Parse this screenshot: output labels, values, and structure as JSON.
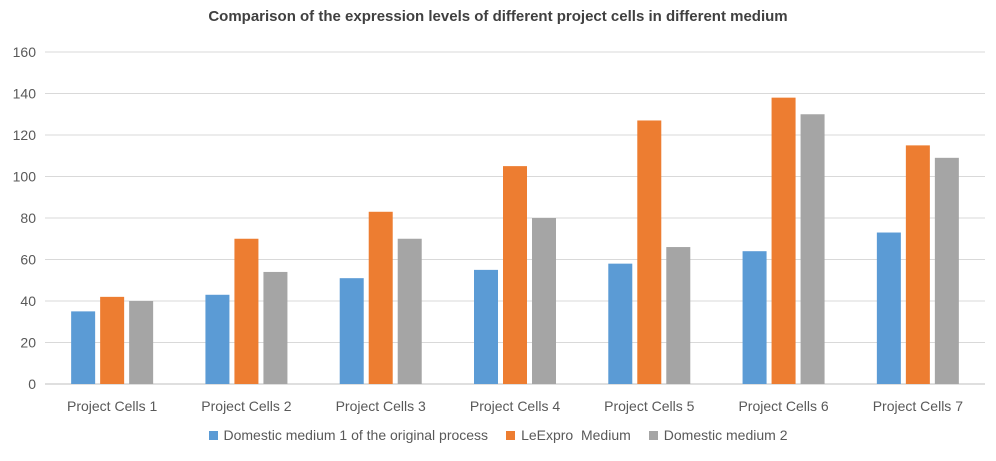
{
  "chart_data": {
    "type": "bar",
    "title": "Comparison  of the expression levels of different project cells in different medium",
    "xlabel": "",
    "ylabel": "",
    "ylim": [
      0,
      160
    ],
    "yticks": [
      0,
      20,
      40,
      60,
      80,
      100,
      120,
      140,
      160
    ],
    "grid": true,
    "legend_position": "bottom",
    "categories": [
      "Project Cells 1",
      "Project Cells 2",
      "Project Cells 3",
      "Project Cells 4",
      "Project Cells 5",
      "Project Cells 6",
      "Project Cells 7"
    ],
    "series": [
      {
        "name": "Domestic medium 1 of the original process",
        "color": "#5b9bd5",
        "values": [
          35,
          43,
          51,
          55,
          58,
          64,
          73
        ]
      },
      {
        "name": "LeExpro  Medium",
        "color": "#ed7d31",
        "values": [
          42,
          70,
          83,
          105,
          127,
          138,
          115
        ]
      },
      {
        "name": "Domestic medium 2",
        "color": "#a5a5a5",
        "values": [
          40,
          54,
          70,
          80,
          66,
          130,
          109
        ]
      }
    ]
  }
}
